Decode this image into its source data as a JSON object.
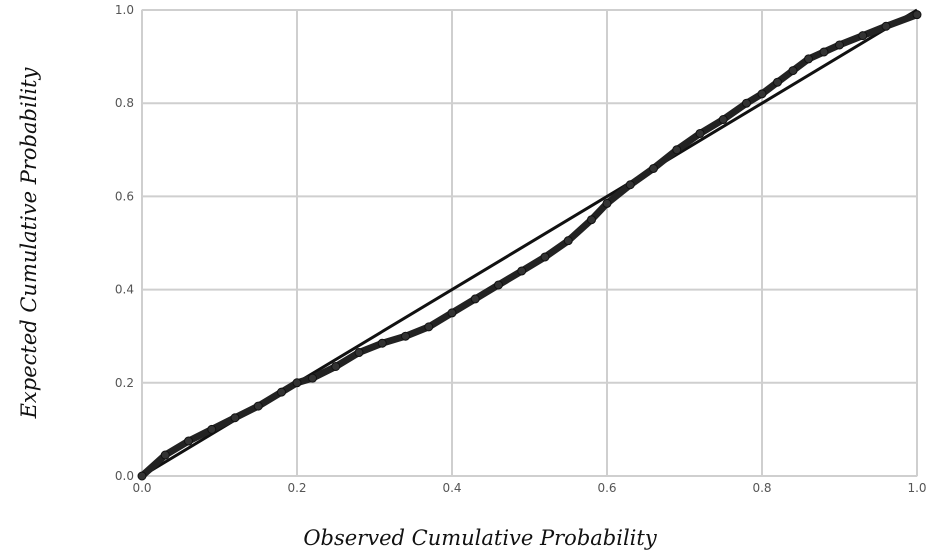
{
  "chart_data": {
    "type": "line",
    "title": "",
    "xlabel": "Observed Cumulative Probability",
    "ylabel": "Expected Cumulative Probability",
    "xlim": [
      0.0,
      1.0
    ],
    "ylim": [
      0.0,
      1.0
    ],
    "xticks": [
      "0.0",
      "0.2",
      "0.4",
      "0.6",
      "0.8",
      "1.0"
    ],
    "yticks": [
      "0.0",
      "0.2",
      "0.4",
      "0.6",
      "0.8",
      "1.0"
    ],
    "grid": true,
    "legend": "none",
    "series": [
      {
        "kind": "reference",
        "color": "#111111",
        "x": [
          0.0,
          1.0
        ],
        "y": [
          0.0,
          1.0
        ]
      },
      {
        "kind": "observed",
        "color": "#222222",
        "x": [
          0.0,
          0.03,
          0.06,
          0.09,
          0.12,
          0.15,
          0.18,
          0.2,
          0.22,
          0.25,
          0.28,
          0.31,
          0.34,
          0.37,
          0.4,
          0.43,
          0.46,
          0.49,
          0.52,
          0.55,
          0.58,
          0.6,
          0.63,
          0.66,
          0.69,
          0.72,
          0.75,
          0.78,
          0.8,
          0.82,
          0.84,
          0.86,
          0.88,
          0.9,
          0.93,
          0.96,
          1.0
        ],
        "y": [
          0.0,
          0.045,
          0.075,
          0.1,
          0.125,
          0.15,
          0.18,
          0.2,
          0.21,
          0.235,
          0.265,
          0.285,
          0.3,
          0.32,
          0.35,
          0.38,
          0.41,
          0.44,
          0.47,
          0.505,
          0.55,
          0.585,
          0.625,
          0.66,
          0.7,
          0.735,
          0.765,
          0.8,
          0.82,
          0.845,
          0.87,
          0.895,
          0.91,
          0.925,
          0.945,
          0.965,
          0.99
        ]
      }
    ]
  }
}
